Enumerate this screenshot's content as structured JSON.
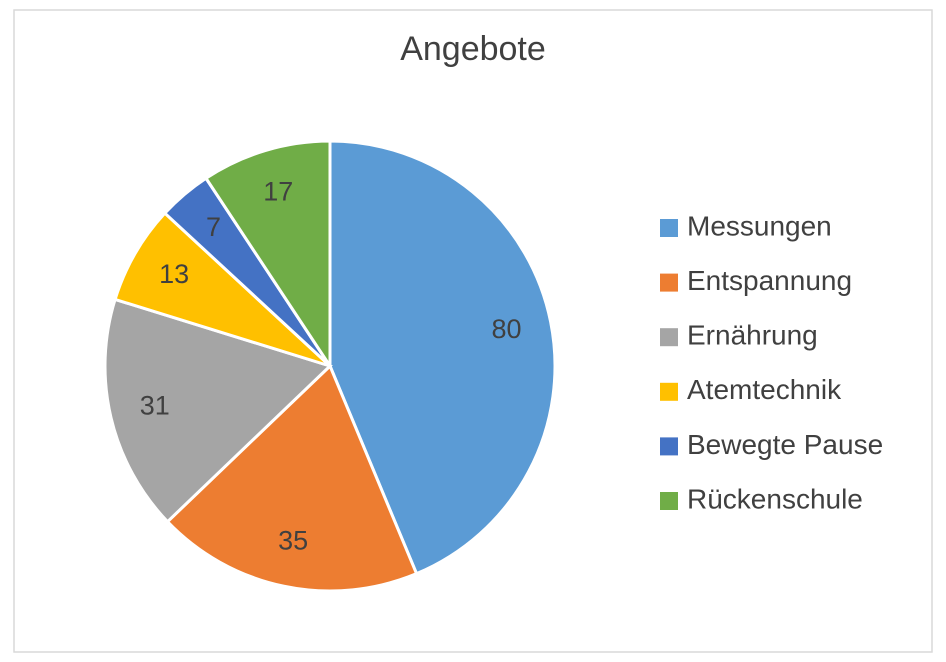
{
  "chart_data": {
    "type": "pie",
    "title": "Angebote",
    "categories": [
      "Messungen",
      "Entspannung",
      "Ernährung",
      "Atemtechnik",
      "Bewegte Pause",
      "Rückenschule"
    ],
    "values": [
      80,
      35,
      31,
      13,
      7,
      17
    ],
    "colors": [
      "#5b9bd5",
      "#ed7d31",
      "#a5a5a5",
      "#ffc000",
      "#4472c4",
      "#70ad47"
    ],
    "legend": "right"
  }
}
